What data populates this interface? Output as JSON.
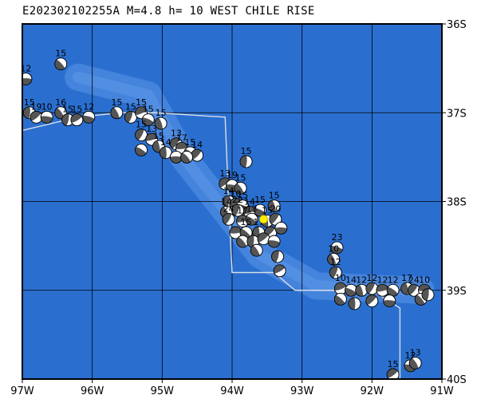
{
  "title": "E202302102255A M=4.8 h= 10 WEST CHILE RISE",
  "colors": {
    "ocean": "#2a6fd0",
    "ridge": "#5b95e6",
    "grid": "#000000",
    "plate_boundary": "#d8dde6",
    "epicenter": "#ffee00"
  },
  "map": {
    "lon_range": [
      -97,
      -91
    ],
    "lat_range": [
      -40,
      -36
    ],
    "lon_ticks": [
      {
        "value": -97,
        "label": "97W"
      },
      {
        "value": -96,
        "label": "96W"
      },
      {
        "value": -95,
        "label": "95W"
      },
      {
        "value": -94,
        "label": "94W"
      },
      {
        "value": -93,
        "label": "93W"
      },
      {
        "value": -92,
        "label": "92W"
      },
      {
        "value": -91,
        "label": "91W"
      }
    ],
    "lat_ticks": [
      {
        "value": -36,
        "label": "36S"
      },
      {
        "value": -37,
        "label": "37S"
      },
      {
        "value": -38,
        "label": "38S"
      },
      {
        "value": -39,
        "label": "39S"
      },
      {
        "value": -40,
        "label": "40S"
      }
    ],
    "epicenter": {
      "lon": -93.55,
      "lat": -38.2
    },
    "plate_boundary": [
      [
        -97,
        -37.2
      ],
      [
        -96.2,
        -37.05
      ],
      [
        -95.6,
        -37.0
      ],
      [
        -95.1,
        -37.0
      ],
      [
        -94.1,
        -37.05
      ],
      [
        -94.05,
        -38.0
      ],
      [
        -94.0,
        -38.8
      ],
      [
        -93.6,
        -38.8
      ],
      [
        -93.4,
        -38.8
      ],
      [
        -93.1,
        -39.0
      ],
      [
        -92.0,
        -39.0
      ],
      [
        -91.6,
        -39.2
      ],
      [
        -91.6,
        -40.0
      ]
    ],
    "mechanisms": [
      {
        "lon": -96.95,
        "lat": -36.62,
        "label": "12"
      },
      {
        "lon": -96.45,
        "lat": -36.45,
        "label": "15"
      },
      {
        "lon": -96.9,
        "lat": -37.0,
        "label": "15"
      },
      {
        "lon": -96.8,
        "lat": -37.05,
        "label": "19"
      },
      {
        "lon": -96.65,
        "lat": -37.05,
        "label": "10"
      },
      {
        "lon": -96.45,
        "lat": -37.0,
        "label": "16"
      },
      {
        "lon": -96.35,
        "lat": -37.08,
        "label": "15"
      },
      {
        "lon": -96.22,
        "lat": -37.08,
        "label": "15"
      },
      {
        "lon": -96.05,
        "lat": -37.05,
        "label": "12"
      },
      {
        "lon": -95.65,
        "lat": -37.0,
        "label": "15"
      },
      {
        "lon": -95.45,
        "lat": -37.05,
        "label": "15"
      },
      {
        "lon": -95.3,
        "lat": -37.0,
        "label": "15"
      },
      {
        "lon": -95.2,
        "lat": -37.08,
        "label": "15"
      },
      {
        "lon": -95.02,
        "lat": -37.12,
        "label": "15"
      },
      {
        "lon": -95.3,
        "lat": -37.25,
        "label": "15"
      },
      {
        "lon": -95.15,
        "lat": -37.3,
        "label": "13"
      },
      {
        "lon": -95.3,
        "lat": -37.42,
        "label": ""
      },
      {
        "lon": -95.05,
        "lat": -37.38,
        "label": "15"
      },
      {
        "lon": -94.8,
        "lat": -37.35,
        "label": "13"
      },
      {
        "lon": -94.72,
        "lat": -37.4,
        "label": "17"
      },
      {
        "lon": -94.6,
        "lat": -37.45,
        "label": "15"
      },
      {
        "lon": -94.95,
        "lat": -37.45,
        "label": "14"
      },
      {
        "lon": -94.5,
        "lat": -37.48,
        "label": "14"
      },
      {
        "lon": -94.8,
        "lat": -37.5,
        "label": ""
      },
      {
        "lon": -94.65,
        "lat": -37.5,
        "label": ""
      },
      {
        "lon": -93.8,
        "lat": -37.55,
        "label": "15"
      },
      {
        "lon": -94.1,
        "lat": -37.8,
        "label": "13"
      },
      {
        "lon": -94.0,
        "lat": -37.82,
        "label": "19"
      },
      {
        "lon": -93.88,
        "lat": -37.85,
        "label": "15"
      },
      {
        "lon": -94.05,
        "lat": -38.0,
        "label": "14"
      },
      {
        "lon": -93.95,
        "lat": -38.03,
        "label": "10"
      },
      {
        "lon": -93.85,
        "lat": -38.05,
        "label": "15"
      },
      {
        "lon": -94.08,
        "lat": -38.12,
        "label": "14"
      },
      {
        "lon": -93.92,
        "lat": -38.1,
        "label": "22"
      },
      {
        "lon": -93.75,
        "lat": -38.12,
        "label": "14"
      },
      {
        "lon": -93.6,
        "lat": -38.1,
        "label": "15"
      },
      {
        "lon": -93.4,
        "lat": -38.05,
        "label": "15"
      },
      {
        "lon": -94.05,
        "lat": -38.2,
        "label": "24"
      },
      {
        "lon": -93.85,
        "lat": -38.22,
        "label": "17"
      },
      {
        "lon": -93.72,
        "lat": -38.2,
        "label": "13"
      },
      {
        "lon": -93.5,
        "lat": -38.22,
        "label": "15"
      },
      {
        "lon": -93.38,
        "lat": -38.2,
        "label": "20"
      },
      {
        "lon": -93.95,
        "lat": -38.35,
        "label": ""
      },
      {
        "lon": -93.8,
        "lat": -38.35,
        "label": "15"
      },
      {
        "lon": -93.62,
        "lat": -38.35,
        "label": "17"
      },
      {
        "lon": -93.45,
        "lat": -38.35,
        "label": ""
      },
      {
        "lon": -93.3,
        "lat": -38.3,
        "label": ""
      },
      {
        "lon": -93.85,
        "lat": -38.45,
        "label": ""
      },
      {
        "lon": -93.7,
        "lat": -38.45,
        "label": ""
      },
      {
        "lon": -93.55,
        "lat": -38.42,
        "label": ""
      },
      {
        "lon": -93.4,
        "lat": -38.45,
        "label": ""
      },
      {
        "lon": -93.65,
        "lat": -38.55,
        "label": ""
      },
      {
        "lon": -93.35,
        "lat": -38.62,
        "label": ""
      },
      {
        "lon": -93.32,
        "lat": -38.78,
        "label": ""
      },
      {
        "lon": -92.5,
        "lat": -38.52,
        "label": "23"
      },
      {
        "lon": -92.55,
        "lat": -38.65,
        "label": "10"
      },
      {
        "lon": -92.52,
        "lat": -38.8,
        "label": "12"
      },
      {
        "lon": -92.45,
        "lat": -38.98,
        "label": "10"
      },
      {
        "lon": -92.3,
        "lat": -39.0,
        "label": "14"
      },
      {
        "lon": -92.15,
        "lat": -39.0,
        "label": "12"
      },
      {
        "lon": -92.0,
        "lat": -38.98,
        "label": "12"
      },
      {
        "lon": -91.85,
        "lat": -39.0,
        "label": "12"
      },
      {
        "lon": -91.7,
        "lat": -39.0,
        "label": "12"
      },
      {
        "lon": -91.5,
        "lat": -38.98,
        "label": "17"
      },
      {
        "lon": -91.4,
        "lat": -39.0,
        "label": "24"
      },
      {
        "lon": -91.25,
        "lat": -39.0,
        "label": "10"
      },
      {
        "lon": -92.45,
        "lat": -39.1,
        "label": ""
      },
      {
        "lon": -92.25,
        "lat": -39.15,
        "label": ""
      },
      {
        "lon": -92.0,
        "lat": -39.12,
        "label": ""
      },
      {
        "lon": -91.75,
        "lat": -39.12,
        "label": ""
      },
      {
        "lon": -91.3,
        "lat": -39.1,
        "label": ""
      },
      {
        "lon": -91.2,
        "lat": -39.05,
        "label": ""
      },
      {
        "lon": -91.7,
        "lat": -39.95,
        "label": "15"
      },
      {
        "lon": -91.45,
        "lat": -39.85,
        "label": "12"
      },
      {
        "lon": -91.38,
        "lat": -39.82,
        "label": "13"
      }
    ]
  }
}
